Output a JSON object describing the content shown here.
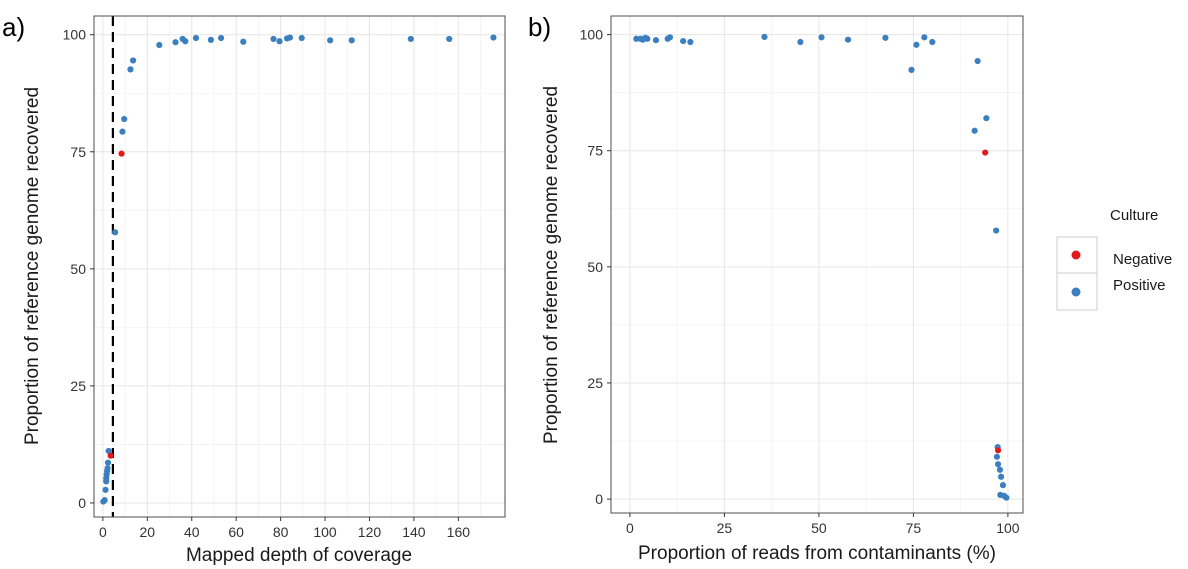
{
  "figure": {
    "colors": {
      "Negative": "#e31a1c",
      "Positive": "#3b7fbf"
    },
    "legend": {
      "title": "Culture",
      "entries": [
        "Negative",
        "Positive"
      ],
      "placement": "right"
    }
  },
  "chart_data": [
    {
      "panel_tag": "a)",
      "type": "scatter",
      "xlabel": "Mapped depth of coverage",
      "ylabel": "Proportion of reference genome recovered",
      "xlim": [
        -4,
        181
      ],
      "ylim": [
        -3,
        104
      ],
      "xticks": [
        0,
        20,
        40,
        60,
        80,
        100,
        120,
        140,
        160
      ],
      "xtick_labels": [
        "0",
        "20",
        "40",
        "60",
        "80",
        "100",
        "120",
        "140",
        "160"
      ],
      "yticks": [
        0,
        25,
        50,
        75,
        100
      ],
      "ytick_labels": [
        "0",
        "25",
        "50",
        "75",
        "100"
      ],
      "vline": {
        "x": 4.5,
        "style": "dashed"
      },
      "grid": true,
      "series": [
        {
          "name": "Negative",
          "points": [
            [
              8.4,
              74.6
            ],
            [
              3.5,
              10.1
            ]
          ]
        },
        {
          "name": "Positive",
          "points": [
            [
              5.5,
              57.8
            ],
            [
              8.8,
              79.3
            ],
            [
              9.6,
              82.0
            ],
            [
              12.4,
              92.6
            ],
            [
              13.6,
              94.5
            ],
            [
              25.4,
              97.8
            ],
            [
              32.7,
              98.4
            ],
            [
              35.9,
              99.1
            ],
            [
              37.1,
              98.6
            ],
            [
              41.9,
              99.3
            ],
            [
              48.6,
              98.9
            ],
            [
              53.2,
              99.3
            ],
            [
              63.2,
              98.5
            ],
            [
              76.8,
              99.1
            ],
            [
              79.5,
              98.6
            ],
            [
              82.9,
              99.2
            ],
            [
              84.2,
              99.4
            ],
            [
              89.5,
              99.3
            ],
            [
              102.3,
              98.8
            ],
            [
              112.0,
              98.8
            ],
            [
              138.6,
              99.1
            ],
            [
              155.9,
              99.1
            ],
            [
              175.8,
              99.4
            ],
            [
              0.2,
              0.3
            ],
            [
              0.8,
              0.6
            ],
            [
              1.2,
              2.8
            ],
            [
              1.5,
              4.6
            ],
            [
              1.5,
              5.3
            ],
            [
              1.7,
              6.1
            ],
            [
              1.9,
              6.8
            ],
            [
              2.1,
              7.4
            ],
            [
              2.3,
              8.6
            ],
            [
              2.6,
              11.1
            ]
          ]
        }
      ]
    },
    {
      "panel_tag": "b)",
      "type": "scatter",
      "xlabel": "Proportion of reads from contaminants (%)",
      "ylabel": "Proportion of reference genome recovered",
      "xlim": [
        -5,
        104
      ],
      "ylim": [
        -3,
        104
      ],
      "xticks": [
        0,
        25,
        50,
        75,
        100
      ],
      "xtick_labels": [
        "0",
        "25",
        "50",
        "75",
        "100"
      ],
      "yticks": [
        0,
        25,
        50,
        75,
        100
      ],
      "ytick_labels": [
        "0",
        "25",
        "50",
        "75",
        "100"
      ],
      "grid": true,
      "series": [
        {
          "name": "Negative",
          "points": [
            [
              94.0,
              74.6
            ],
            [
              97.4,
              10.5
            ]
          ]
        },
        {
          "name": "Positive",
          "points": [
            [
              1.7,
              99.1
            ],
            [
              2.8,
              99.1
            ],
            [
              3.4,
              98.9
            ],
            [
              4.1,
              99.3
            ],
            [
              4.6,
              99.1
            ],
            [
              6.9,
              98.8
            ],
            [
              10.0,
              99.1
            ],
            [
              10.6,
              99.4
            ],
            [
              14.1,
              98.6
            ],
            [
              16.0,
              98.4
            ],
            [
              35.6,
              99.5
            ],
            [
              45.1,
              98.4
            ],
            [
              50.7,
              99.4
            ],
            [
              57.7,
              98.9
            ],
            [
              67.6,
              99.3
            ],
            [
              74.5,
              92.4
            ],
            [
              75.8,
              97.8
            ],
            [
              77.9,
              99.4
            ],
            [
              80.0,
              98.4
            ],
            [
              91.2,
              79.3
            ],
            [
              92.0,
              94.3
            ],
            [
              94.3,
              82.0
            ],
            [
              96.9,
              57.8
            ],
            [
              97.3,
              11.2
            ],
            [
              97.1,
              9.1
            ],
            [
              97.4,
              7.5
            ],
            [
              97.9,
              6.3
            ],
            [
              98.2,
              4.8
            ],
            [
              98.7,
              3.0
            ],
            [
              98.0,
              0.9
            ],
            [
              99.0,
              0.7
            ],
            [
              99.6,
              0.3
            ]
          ]
        }
      ]
    }
  ]
}
